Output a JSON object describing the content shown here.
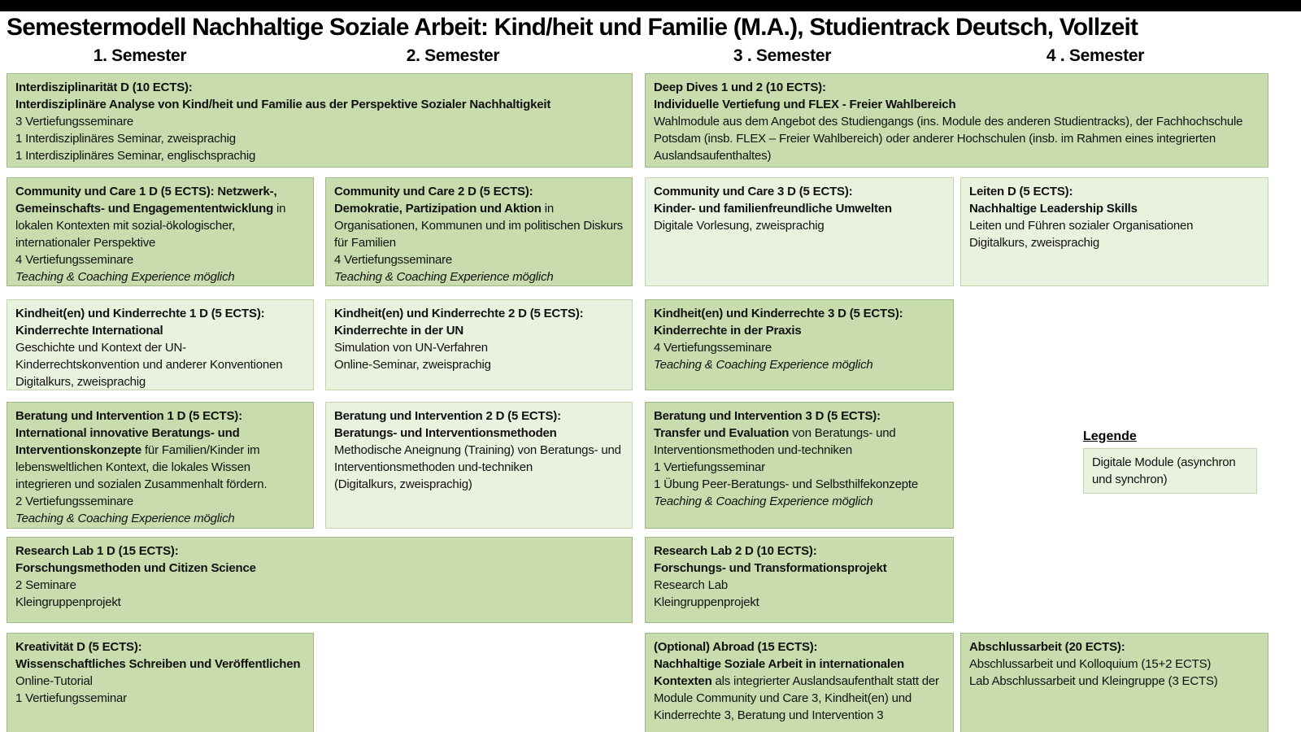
{
  "page": {
    "title": "Semestermodell Nachhaltige Soziale Arbeit: Kind/heit und Familie (M.A.), Studientrack Deutsch, Vollzeit",
    "columns": [
      "1. Semester",
      "2. Semester",
      "3 . Semester",
      "4 . Semester"
    ]
  },
  "legend": {
    "title": "Legende",
    "digital_label": "Digitale Module (asynchron und synchron)"
  },
  "colors": {
    "module_dark": "#c8dcae",
    "module_light": "#e9f1df",
    "border_dark": "#9eb984",
    "border_light": "#c3d4ae",
    "topbar": "#000000"
  },
  "modules": [
    {
      "id": "interdisziplinaritaet",
      "variant": "dark",
      "paragraphs": [
        [
          {
            "s": "b",
            "t": "Interdisziplinarität D (10 ECTS):"
          }
        ],
        [
          {
            "s": "b",
            "t": "Interdisziplinäre Analyse von Kind/heit und Familie aus der Perspektive Sozialer Nachhaltigkeit"
          }
        ],
        [
          {
            "s": "n",
            "t": "3 Vertiefungsseminare"
          }
        ],
        [
          {
            "s": "n",
            "t": "1 Interdisziplinäres Seminar, zweisprachig"
          }
        ],
        [
          {
            "s": "n",
            "t": "1 Interdisziplinäres Seminar, englischsprachig"
          }
        ]
      ]
    },
    {
      "id": "deep-dives",
      "variant": "dark",
      "paragraphs": [
        [
          {
            "s": "b",
            "t": "Deep Dives 1 und 2 (10 ECTS):"
          }
        ],
        [
          {
            "s": "b",
            "t": "Individuelle Vertiefung und FLEX - Freier Wahlbereich"
          }
        ],
        [
          {
            "s": "n",
            "t": "Wahlmodule aus dem Angebot des Studiengangs (ins. Module des anderen Studientracks), der Fachhochschule Potsdam (insb. FLEX – Freier Wahlbereich) oder anderer Hochschulen (insb. im Rahmen eines integrierten Auslandsaufenthaltes)"
          }
        ]
      ]
    },
    {
      "id": "community-care-1",
      "variant": "dark",
      "paragraphs": [
        [
          {
            "s": "b",
            "t": "Community und Care 1 D (5 ECTS): Netzwerk-, Gemeinschafts- und Engagemententwicklung"
          },
          {
            "s": "n",
            "t": " in lokalen Kontexten mit sozial-ökologischer, internationaler Perspektive"
          }
        ],
        [
          {
            "s": "n",
            "t": "4 Vertiefungsseminare"
          }
        ],
        [
          {
            "s": "i",
            "t": "Teaching & Coaching Experience möglich"
          }
        ]
      ]
    },
    {
      "id": "community-care-2",
      "variant": "dark",
      "paragraphs": [
        [
          {
            "s": "b",
            "t": "Community und Care 2 D (5 ECTS):"
          }
        ],
        [
          {
            "s": "b",
            "t": "Demokratie, Partizipation und Aktion"
          },
          {
            "s": "n",
            "t": " in Organisationen, Kommunen und im politischen Diskurs für Familien"
          }
        ],
        [
          {
            "s": "n",
            "t": "4 Vertiefungsseminare"
          }
        ],
        [
          {
            "s": "i",
            "t": "Teaching & Coaching Experience möglich"
          }
        ]
      ]
    },
    {
      "id": "community-care-3",
      "variant": "light",
      "paragraphs": [
        [
          {
            "s": "b",
            "t": "Community und Care 3 D (5 ECTS):"
          }
        ],
        [
          {
            "s": "b",
            "t": "Kinder- und familienfreundliche Umwelten"
          }
        ],
        [
          {
            "s": "n",
            "t": "Digitale Vorlesung, zweisprachig"
          }
        ]
      ]
    },
    {
      "id": "leiten",
      "variant": "light",
      "paragraphs": [
        [
          {
            "s": "b",
            "t": "Leiten D (5 ECTS):"
          }
        ],
        [
          {
            "s": "b",
            "t": "Nachhaltige Leadership Skills"
          }
        ],
        [
          {
            "s": "n",
            "t": "Leiten und Führen sozialer Organisationen"
          }
        ],
        [
          {
            "s": "n",
            "t": "Digitalkurs, zweisprachig"
          }
        ]
      ]
    },
    {
      "id": "kinderrechte-1",
      "variant": "light",
      "paragraphs": [
        [
          {
            "s": "b",
            "t": "Kindheit(en) und Kinderrechte 1 D (5 ECTS):"
          }
        ],
        [
          {
            "s": "b",
            "t": "Kinderrechte International"
          }
        ],
        [
          {
            "s": "n",
            "t": "Geschichte und Kontext der UN-Kinderrechtskonvention und anderer Konventionen"
          }
        ],
        [
          {
            "s": "n",
            "t": "Digitalkurs, zweisprachig"
          }
        ]
      ]
    },
    {
      "id": "kinderrechte-2",
      "variant": "light",
      "paragraphs": [
        [
          {
            "s": "b",
            "t": "Kindheit(en) und Kinderrechte 2 D (5 ECTS):"
          }
        ],
        [
          {
            "s": "b",
            "t": "Kinderrechte in der UN"
          }
        ],
        [
          {
            "s": "n",
            "t": "Simulation von UN-Verfahren"
          }
        ],
        [
          {
            "s": "n",
            "t": "Online-Seminar, zweisprachig"
          }
        ]
      ]
    },
    {
      "id": "kinderrechte-3",
      "variant": "dark",
      "paragraphs": [
        [
          {
            "s": "b",
            "t": "Kindheit(en) und Kinderrechte 3 D (5 ECTS):"
          }
        ],
        [
          {
            "s": "b",
            "t": "Kinderrechte in der Praxis"
          }
        ],
        [
          {
            "s": "n",
            "t": "4 Vertiefungsseminare"
          }
        ],
        [
          {
            "s": "i",
            "t": "Teaching & Coaching Experience möglich"
          }
        ]
      ]
    },
    {
      "id": "beratung-1",
      "variant": "dark",
      "paragraphs": [
        [
          {
            "s": "b",
            "t": "Beratung und Intervention 1 D (5 ECTS):"
          }
        ],
        [
          {
            "s": "b",
            "t": "International innovative Beratungs- und Interventionskonzepte"
          },
          {
            "s": "n",
            "t": " für Familien/Kinder im lebensweltlichen Kontext, die lokales Wissen integrieren und sozialen Zusammenhalt fördern."
          }
        ],
        [
          {
            "s": "n",
            "t": "2 Vertiefungsseminare"
          }
        ],
        [
          {
            "s": "i",
            "t": "Teaching & Coaching Experience möglich"
          }
        ]
      ]
    },
    {
      "id": "beratung-2",
      "variant": "light",
      "paragraphs": [
        [
          {
            "s": "b",
            "t": "Beratung und Intervention 2 D (5 ECTS):"
          }
        ],
        [
          {
            "s": "b",
            "t": "Beratungs- und Interventionsmethoden"
          }
        ],
        [
          {
            "s": "n",
            "t": "Methodische Aneignung (Training) von Beratungs- und Interventionsmethoden und-techniken"
          }
        ],
        [
          {
            "s": "n",
            "t": "(Digitalkurs, zweisprachig)"
          }
        ]
      ]
    },
    {
      "id": "beratung-3",
      "variant": "dark",
      "paragraphs": [
        [
          {
            "s": "b",
            "t": "Beratung und Intervention 3 D (5 ECTS):"
          }
        ],
        [
          {
            "s": "b",
            "t": "Transfer und Evaluation"
          },
          {
            "s": "n",
            "t": " von Beratungs- und Interventionsmethoden und-techniken"
          }
        ],
        [
          {
            "s": "n",
            "t": "1 Vertiefungsseminar"
          }
        ],
        [
          {
            "s": "n",
            "t": "1 Übung Peer-Beratungs- und Selbsthilfekonzepte"
          }
        ],
        [
          {
            "s": "i",
            "t": "Teaching & Coaching Experience möglich"
          }
        ]
      ]
    },
    {
      "id": "research-lab-1",
      "variant": "dark",
      "paragraphs": [
        [
          {
            "s": "b",
            "t": "Research Lab 1 D (15 ECTS):"
          }
        ],
        [
          {
            "s": "b",
            "t": "Forschungsmethoden und Citizen Science"
          }
        ],
        [
          {
            "s": "n",
            "t": "2 Seminare"
          }
        ],
        [
          {
            "s": "n",
            "t": "Kleingruppenprojekt"
          }
        ]
      ]
    },
    {
      "id": "research-lab-2",
      "variant": "dark",
      "paragraphs": [
        [
          {
            "s": "b",
            "t": "Research Lab 2 D (10 ECTS):"
          }
        ],
        [
          {
            "s": "b",
            "t": "Forschungs- und Transformationsprojekt"
          }
        ],
        [
          {
            "s": "n",
            "t": "Research Lab"
          }
        ],
        [
          {
            "s": "n",
            "t": "Kleingruppenprojekt"
          }
        ]
      ]
    },
    {
      "id": "kreativitaet",
      "variant": "dark",
      "paragraphs": [
        [
          {
            "s": "b",
            "t": "Kreativität D (5 ECTS):"
          }
        ],
        [
          {
            "s": "b",
            "t": "Wissenschaftliches Schreiben und Veröffentlichen"
          }
        ],
        [
          {
            "s": "n",
            "t": "Online-Tutorial"
          }
        ],
        [
          {
            "s": "n",
            "t": "1 Vertiefungsseminar"
          }
        ]
      ]
    },
    {
      "id": "abroad",
      "variant": "dark",
      "paragraphs": [
        [
          {
            "s": "b",
            "t": "(Optional) Abroad (15 ECTS):"
          }
        ],
        [
          {
            "s": "b",
            "t": "Nachhaltige Soziale Arbeit in internationalen Kontexten"
          },
          {
            "s": "n",
            "t": " als integrierter Auslandsaufenthalt statt der Module Community und Care 3, Kindheit(en) und Kinderrechte 3, Beratung und Intervention 3"
          }
        ]
      ]
    },
    {
      "id": "abschlussarbeit",
      "variant": "dark",
      "paragraphs": [
        [
          {
            "s": "b",
            "t": "Abschlussarbeit (20 ECTS):"
          }
        ],
        [
          {
            "s": "n",
            "t": "Abschlussarbeit und Kolloquium (15+2 ECTS)"
          }
        ],
        [
          {
            "s": "n",
            "t": "Lab Abschlussarbeit und Kleingruppe (3 ECTS)"
          }
        ]
      ]
    }
  ]
}
